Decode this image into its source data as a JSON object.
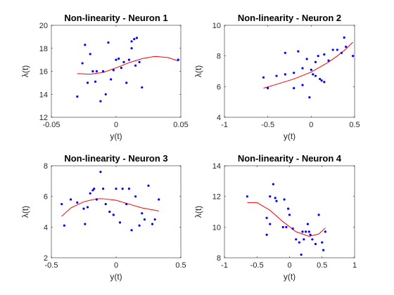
{
  "colors": {
    "points": "#0000ff",
    "curve": "#ff0000",
    "axes": "#262626",
    "background": "#ffffff"
  },
  "chart_data": [
    {
      "type": "scatter",
      "title": "Non-linearity - Neuron 1",
      "xlabel": "y(t)",
      "ylabel": "λ(t)",
      "xlim": [
        -0.05,
        0.05
      ],
      "ylim": [
        12,
        20
      ],
      "xticks": [
        -0.05,
        0,
        0.05
      ],
      "xtick_labels": [
        "-0.05",
        "0",
        "0.05"
      ],
      "yticks": [
        12,
        14,
        16,
        18,
        20
      ],
      "ytick_labels": [
        "12",
        "14",
        "16",
        "18",
        "20"
      ],
      "series": [
        {
          "type": "scatter",
          "x": [
            -0.03,
            -0.026,
            -0.024,
            -0.022,
            -0.02,
            -0.018,
            -0.016,
            -0.015,
            -0.012,
            -0.01,
            -0.008,
            -0.006,
            -0.004,
            -0.002,
            0.0,
            0.002,
            0.004,
            0.006,
            0.008,
            0.01,
            0.012,
            0.012,
            0.014,
            0.015,
            0.016,
            0.018,
            0.02,
            0.048
          ],
          "y": [
            13.8,
            16.7,
            18.3,
            15.0,
            17.5,
            16.0,
            15.1,
            16.0,
            13.4,
            16.0,
            14.0,
            18.5,
            15.3,
            16.1,
            17.0,
            17.1,
            16.3,
            16.8,
            15.0,
            17.0,
            18.6,
            18.0,
            18.8,
            16.5,
            18.9,
            16.8,
            14.6,
            17.0
          ]
        },
        {
          "type": "line",
          "x": [
            -0.03,
            -0.02,
            -0.01,
            0.0,
            0.01,
            0.02,
            0.03,
            0.04,
            0.048
          ],
          "y": [
            15.8,
            15.75,
            15.9,
            16.3,
            16.75,
            17.1,
            17.3,
            17.2,
            16.9
          ]
        }
      ]
    },
    {
      "type": "scatter",
      "title": "Non-linearity - Neuron 2",
      "xlabel": "y(t)",
      "ylabel": "λ(t)",
      "xlim": [
        -1,
        0.5
      ],
      "ylim": [
        4,
        10
      ],
      "xticks": [
        -1,
        -0.5,
        0,
        0.5
      ],
      "xtick_labels": [
        "-1",
        "-0.5",
        "0",
        "0.5"
      ],
      "yticks": [
        4,
        6,
        8,
        10
      ],
      "ytick_labels": [
        "4",
        "6",
        "8",
        "10"
      ],
      "series": [
        {
          "type": "scatter",
          "x": [
            -0.55,
            -0.5,
            -0.4,
            -0.3,
            -0.3,
            -0.2,
            -0.2,
            -0.15,
            -0.1,
            -0.1,
            -0.05,
            -0.02,
            0.0,
            0.02,
            0.05,
            0.05,
            0.08,
            0.1,
            0.12,
            0.15,
            0.15,
            0.2,
            0.25,
            0.3,
            0.35,
            0.38,
            0.4,
            0.48
          ],
          "y": [
            6.6,
            5.9,
            6.7,
            6.8,
            8.2,
            6.9,
            5.9,
            8.3,
            7.2,
            6.1,
            7.8,
            5.3,
            7.1,
            6.8,
            6.7,
            7.6,
            8.0,
            6.5,
            6.4,
            6.3,
            8.1,
            7.7,
            8.4,
            8.4,
            8.2,
            9.2,
            8.6,
            8.0
          ]
        },
        {
          "type": "line",
          "x": [
            -0.55,
            -0.4,
            -0.2,
            0.0,
            0.2,
            0.3,
            0.4,
            0.48
          ],
          "y": [
            5.9,
            6.15,
            6.5,
            6.95,
            7.6,
            8.0,
            8.45,
            8.9
          ]
        }
      ]
    },
    {
      "type": "scatter",
      "title": "Non-linearity - Neuron 3",
      "xlabel": "y(t)",
      "ylabel": "λ(t)",
      "xlim": [
        -0.5,
        0.5
      ],
      "ylim": [
        2,
        8
      ],
      "xticks": [
        -0.5,
        0,
        0.5
      ],
      "xtick_labels": [
        "-0.5",
        "0",
        "0.5"
      ],
      "yticks": [
        2,
        4,
        6,
        8
      ],
      "ytick_labels": [
        "2",
        "4",
        "6",
        "8"
      ],
      "series": [
        {
          "type": "scatter",
          "x": [
            -0.42,
            -0.4,
            -0.35,
            -0.3,
            -0.25,
            -0.24,
            -0.22,
            -0.2,
            -0.18,
            -0.17,
            -0.15,
            -0.12,
            -0.1,
            -0.08,
            -0.05,
            -0.02,
            0.0,
            0.03,
            0.05,
            0.08,
            0.1,
            0.12,
            0.15,
            0.18,
            0.2,
            0.22,
            0.25,
            0.28,
            0.3,
            0.33
          ],
          "y": [
            5.5,
            4.1,
            5.8,
            5.6,
            5.2,
            4.2,
            5.3,
            6.2,
            6.4,
            6.5,
            5.8,
            7.6,
            6.5,
            5.5,
            5.0,
            4.8,
            6.5,
            4.3,
            6.5,
            5.5,
            6.5,
            3.8,
            6.0,
            4.1,
            4.9,
            4.5,
            6.7,
            4.2,
            4.5,
            5.8
          ]
        },
        {
          "type": "line",
          "x": [
            -0.42,
            -0.35,
            -0.25,
            -0.15,
            -0.1,
            0.0,
            0.1,
            0.2,
            0.33
          ],
          "y": [
            4.7,
            5.25,
            5.65,
            5.85,
            5.85,
            5.75,
            5.5,
            5.25,
            5.05
          ]
        }
      ]
    },
    {
      "type": "scatter",
      "title": "Non-linearity - Neuron 4",
      "xlabel": "y(t)",
      "ylabel": "λ(t)",
      "xlim": [
        -1,
        1
      ],
      "ylim": [
        8,
        14
      ],
      "xticks": [
        -1,
        -0.5,
        0,
        0.5,
        1
      ],
      "xtick_labels": [
        "-1",
        "-0.5",
        "0",
        "0.5",
        "1"
      ],
      "yticks": [
        8,
        10,
        12,
        14
      ],
      "ytick_labels": [
        "8",
        "10",
        "12",
        "14"
      ],
      "series": [
        {
          "type": "scatter",
          "x": [
            -0.65,
            -0.35,
            -0.35,
            -0.3,
            -0.3,
            -0.25,
            -0.22,
            -0.2,
            -0.1,
            -0.08,
            -0.05,
            -0.02,
            0.0,
            0.05,
            0.1,
            0.15,
            0.18,
            0.2,
            0.22,
            0.25,
            0.28,
            0.3,
            0.32,
            0.35,
            0.4,
            0.45,
            0.5,
            0.52,
            0.55
          ],
          "y": [
            12.0,
            9.5,
            10.6,
            12.0,
            10.2,
            12.8,
            11.9,
            11.7,
            10.0,
            11.8,
            10.0,
            11.2,
            10.8,
            9.9,
            9.2,
            9.0,
            8.2,
            9.7,
            9.2,
            9.7,
            10.2,
            9.7,
            9.5,
            9.2,
            8.9,
            10.8,
            9.0,
            8.5,
            9.7
          ]
        },
        {
          "type": "line",
          "x": [
            -0.65,
            -0.5,
            -0.3,
            -0.1,
            0.1,
            0.3,
            0.45,
            0.55
          ],
          "y": [
            11.6,
            11.6,
            11.1,
            10.35,
            9.7,
            9.4,
            9.55,
            9.95
          ]
        }
      ]
    }
  ]
}
